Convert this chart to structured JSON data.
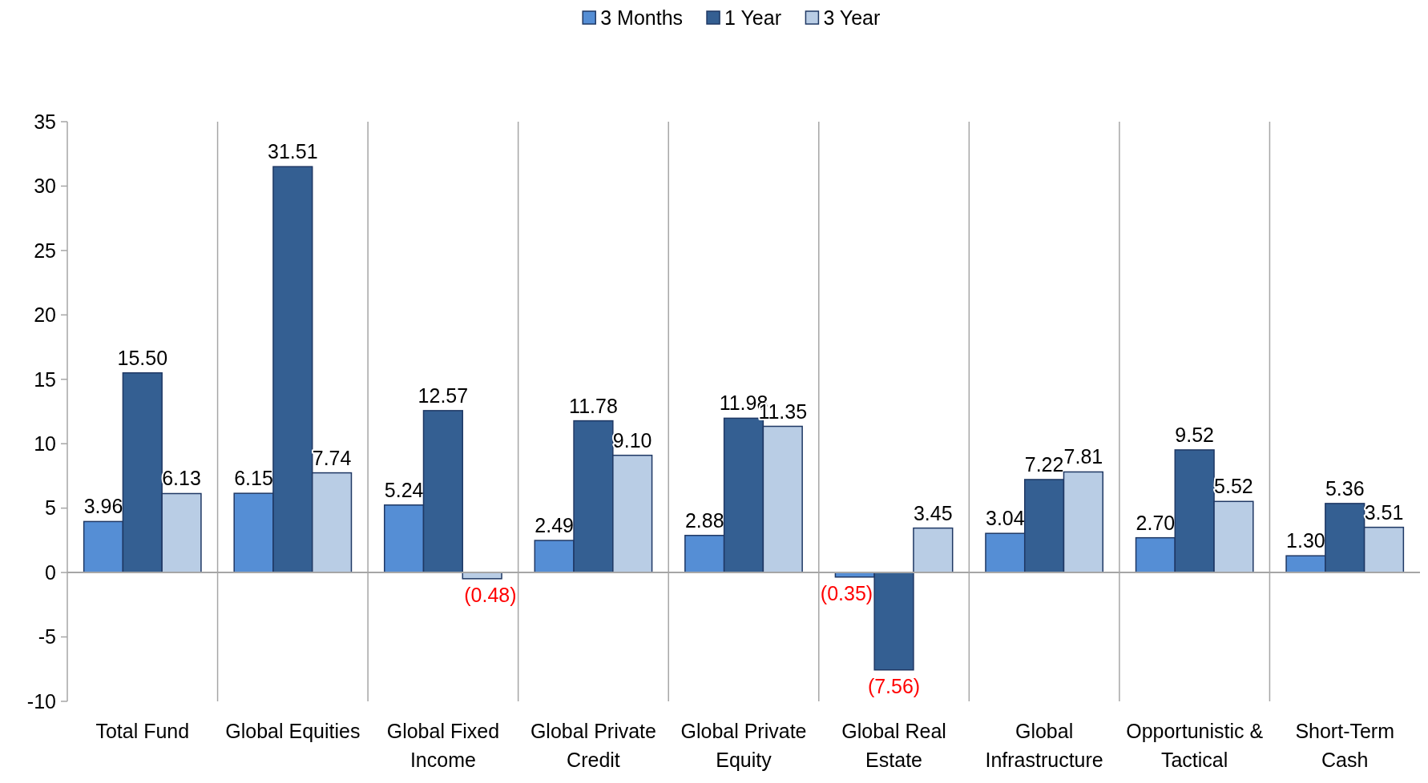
{
  "chart_data": {
    "type": "bar",
    "categories": [
      "Total Fund",
      "Global Equities",
      "Global Fixed Income",
      "Global Private Credit",
      "Global Private Equity",
      "Global Real Estate",
      "Global Infrastructure",
      "Opportunistic & Tactical",
      "Short-Term Cash"
    ],
    "series": [
      {
        "name": "3 Months",
        "color": "#558ed5",
        "values": [
          3.96,
          6.15,
          5.24,
          2.49,
          2.88,
          -0.35,
          3.04,
          2.7,
          1.3
        ],
        "value_labels": [
          "3.96",
          "6.15",
          "5.24",
          "2.49",
          "2.88",
          "(0.35)",
          "3.04",
          "2.70",
          "1.30"
        ]
      },
      {
        "name": "1 Year",
        "color": "#345f92",
        "values": [
          15.5,
          31.51,
          12.57,
          11.78,
          11.98,
          -7.56,
          7.22,
          9.52,
          5.36
        ],
        "value_labels": [
          "15.50",
          "31.51",
          "12.57",
          "11.78",
          "11.98",
          "(7.56)",
          "7.22",
          "9.52",
          "5.36"
        ]
      },
      {
        "name": "3 Year",
        "color": "#b9cde5",
        "values": [
          6.13,
          7.74,
          -0.48,
          9.1,
          11.35,
          3.45,
          7.81,
          5.52,
          3.51
        ],
        "value_labels": [
          "6.13",
          "7.74",
          "(0.48)",
          "9.10",
          "11.35",
          "3.45",
          "7.81",
          "5.52",
          "3.51"
        ]
      }
    ],
    "ylim": [
      -10,
      35
    ],
    "yticks": [
      -10,
      -5,
      0,
      5,
      10,
      15,
      20,
      25,
      30,
      35
    ],
    "grid": "x",
    "legend": "top"
  }
}
